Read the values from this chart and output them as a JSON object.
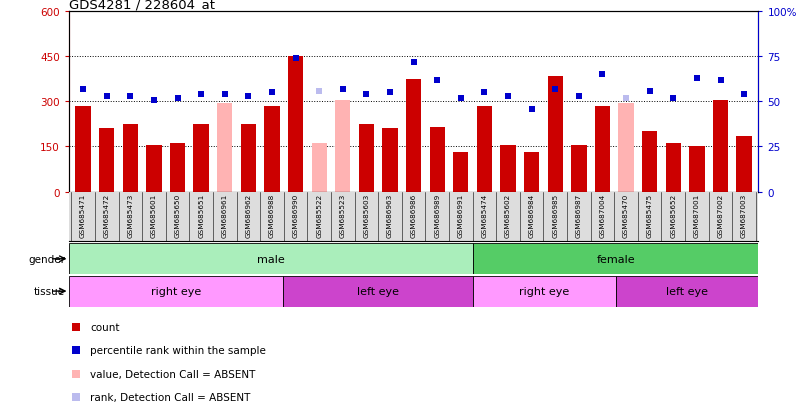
{
  "title": "GDS4281 / 228604_at",
  "samples": [
    "GSM685471",
    "GSM685472",
    "GSM685473",
    "GSM685601",
    "GSM685650",
    "GSM685651",
    "GSM686961",
    "GSM686962",
    "GSM686988",
    "GSM686990",
    "GSM685522",
    "GSM685523",
    "GSM685603",
    "GSM686963",
    "GSM686986",
    "GSM686989",
    "GSM686991",
    "GSM685474",
    "GSM685602",
    "GSM686984",
    "GSM686985",
    "GSM686987",
    "GSM687004",
    "GSM685470",
    "GSM685475",
    "GSM685652",
    "GSM687001",
    "GSM687002",
    "GSM687003"
  ],
  "count_values": [
    285,
    210,
    225,
    155,
    160,
    225,
    null,
    225,
    285,
    450,
    null,
    null,
    225,
    210,
    375,
    215,
    130,
    285,
    155,
    130,
    385,
    155,
    285,
    null,
    200,
    160,
    150,
    305,
    185
  ],
  "absent_count_values": [
    null,
    null,
    null,
    null,
    null,
    null,
    295,
    null,
    null,
    null,
    160,
    305,
    null,
    null,
    null,
    null,
    null,
    null,
    null,
    null,
    null,
    null,
    null,
    295,
    null,
    null,
    null,
    null,
    null
  ],
  "rank_values": [
    57,
    53,
    53,
    51,
    52,
    54,
    54,
    53,
    55,
    74,
    null,
    57,
    54,
    55,
    72,
    62,
    52,
    55,
    53,
    46,
    57,
    53,
    65,
    null,
    56,
    52,
    63,
    62,
    54
  ],
  "absent_rank_values": [
    null,
    null,
    null,
    null,
    null,
    null,
    null,
    null,
    null,
    null,
    56,
    null,
    null,
    null,
    null,
    null,
    null,
    null,
    null,
    null,
    null,
    null,
    null,
    52,
    null,
    null,
    null,
    null,
    null
  ],
  "gender_male_span": [
    0,
    17
  ],
  "gender_female_span": [
    17,
    29
  ],
  "tissue_spans": [
    {
      "label": "right eye",
      "start": 0,
      "end": 9,
      "color": "#FF99FF"
    },
    {
      "label": "left eye",
      "start": 9,
      "end": 17,
      "color": "#CC44CC"
    },
    {
      "label": "right eye",
      "start": 17,
      "end": 23,
      "color": "#FF99FF"
    },
    {
      "label": "left eye",
      "start": 23,
      "end": 29,
      "color": "#CC44CC"
    }
  ],
  "ylim_left": [
    0,
    600
  ],
  "ylim_right": [
    0,
    100
  ],
  "yticks_left": [
    0,
    150,
    300,
    450,
    600
  ],
  "ytick_labels_left": [
    "0",
    "150",
    "300",
    "450",
    "600"
  ],
  "yticks_right": [
    0,
    25,
    50,
    75,
    100
  ],
  "ytick_labels_right": [
    "0",
    "25",
    "50",
    "75",
    "100%"
  ],
  "bar_color": "#CC0000",
  "absent_bar_color": "#FFB3B3",
  "rank_color": "#0000CC",
  "absent_rank_color": "#BBBBEE",
  "male_color": "#AAEEBB",
  "female_color": "#55CC66",
  "right_eye_color": "#FFAAFF",
  "left_eye_color": "#CC44CC",
  "hgrid_vals": [
    150,
    300,
    450
  ],
  "legend_items": [
    {
      "color": "#CC0000",
      "label": "count"
    },
    {
      "color": "#0000CC",
      "label": "percentile rank within the sample"
    },
    {
      "color": "#FFB3B3",
      "label": "value, Detection Call = ABSENT"
    },
    {
      "color": "#BBBBEE",
      "label": "rank, Detection Call = ABSENT"
    }
  ]
}
